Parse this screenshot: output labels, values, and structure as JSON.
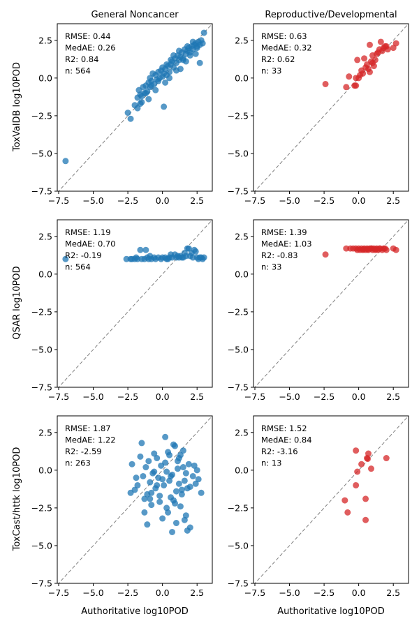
{
  "figure": {
    "shared_xlabel": "Authoritative log10POD",
    "column_titles": [
      "General Noncancer",
      "Reproductive/Developmental"
    ],
    "row_ylabels": [
      "ToxValDB log10POD",
      "QSAR log10POD",
      "ToxCast/httk log10POD"
    ],
    "colors": {
      "general": "#1f77b4",
      "repro": "#d62728",
      "identity_line": "#808080"
    }
  },
  "chart_data": [
    {
      "type": "scatter",
      "panel": "toxvaldb-general",
      "title": "General Noncancer",
      "xlabel": "",
      "ylabel": "ToxValDB log10POD",
      "xlim": [
        -7.6,
        3.6
      ],
      "ylim": [
        -7.5,
        3.6
      ],
      "xticks": [
        -7.5,
        -5.0,
        -2.5,
        0.0,
        2.5
      ],
      "yticks": [
        -7.5,
        -5.0,
        -2.5,
        0.0,
        2.5
      ],
      "stats": {
        "rmse": "RMSE: 0.44",
        "medae": "MedAE: 0.26",
        "r2": "R2: 0.84",
        "n": "n: 564"
      },
      "color": "#1f77b4",
      "x": [
        -7.0,
        -2.5,
        -2.3,
        -2.0,
        -1.8,
        -1.7,
        -1.6,
        -1.5,
        -1.4,
        -1.3,
        -1.2,
        -1.1,
        -1.0,
        -0.9,
        -0.8,
        -0.7,
        -0.6,
        -0.5,
        -0.4,
        -0.3,
        -0.2,
        -0.1,
        0.0,
        0.1,
        0.2,
        0.3,
        0.4,
        0.5,
        0.6,
        0.7,
        0.8,
        0.9,
        1.0,
        1.1,
        1.2,
        1.3,
        1.4,
        1.5,
        1.6,
        1.7,
        1.8,
        1.9,
        2.0,
        2.1,
        2.2,
        2.3,
        2.4,
        2.5,
        2.6,
        2.7,
        2.8,
        2.9,
        3.0,
        0.1,
        -0.5,
        -1.0,
        -1.8,
        -1.6,
        0.5,
        1.0,
        1.5,
        2.0,
        2.5,
        -0.3,
        0.3,
        0.8,
        1.3,
        1.8,
        -1.2,
        -0.8,
        0.0,
        0.6,
        1.2,
        2.2,
        2.7,
        -1.5,
        -0.9,
        0.2,
        1.7,
        2.4
      ],
      "y": [
        -5.5,
        -2.3,
        -2.7,
        -1.8,
        -1.3,
        -0.8,
        -1.1,
        -1.6,
        -0.6,
        -1.0,
        -0.5,
        -0.9,
        -0.3,
        -0.6,
        -0.2,
        0.3,
        -0.4,
        0.2,
        -0.1,
        0.4,
        0.0,
        0.5,
        0.1,
        0.3,
        0.6,
        0.2,
        0.8,
        0.4,
        0.9,
        1.1,
        0.7,
        1.3,
        1.0,
        1.5,
        1.2,
        1.4,
        1.7,
        1.3,
        1.9,
        1.6,
        1.8,
        2.0,
        1.7,
        2.1,
        1.9,
        2.2,
        2.3,
        2.1,
        2.4,
        2.2,
        2.5,
        2.3,
        3.0,
        -1.9,
        -0.8,
        -1.4,
        -2.0,
        -1.7,
        0.0,
        0.5,
        1.2,
        1.5,
        2.0,
        -0.2,
        0.9,
        1.5,
        0.6,
        2.1,
        -1.0,
        -0.5,
        0.7,
        1.2,
        1.8,
        2.4,
        1.0,
        -1.2,
        0.0,
        -0.3,
        1.1,
        1.6
      ]
    },
    {
      "type": "scatter",
      "panel": "toxvaldb-repro",
      "title": "Reproductive/Developmental",
      "xlabel": "",
      "ylabel": "",
      "xlim": [
        -7.6,
        3.6
      ],
      "ylim": [
        -7.5,
        3.6
      ],
      "xticks": [
        -7.5,
        -5.0,
        -2.5,
        0.0,
        2.5
      ],
      "yticks": [
        -7.5,
        -5.0,
        -2.5,
        0.0,
        2.5
      ],
      "stats": {
        "rmse": "RMSE: 0.63",
        "medae": "MedAE: 0.32",
        "r2": "R2: 0.62",
        "n": "n: 33"
      },
      "color": "#d62728",
      "x": [
        -2.4,
        -0.9,
        -0.7,
        -0.3,
        -0.2,
        -0.1,
        0.0,
        0.1,
        0.2,
        0.3,
        0.4,
        0.5,
        0.6,
        0.7,
        0.8,
        0.9,
        1.0,
        1.1,
        1.2,
        1.3,
        1.4,
        1.5,
        1.6,
        1.7,
        1.8,
        1.9,
        2.0,
        2.1,
        2.5,
        2.7,
        -0.2,
        0.8,
        1.0
      ],
      "y": [
        -0.4,
        -0.6,
        0.1,
        -0.5,
        -0.5,
        1.2,
        0.0,
        0.2,
        0.5,
        0.3,
        1.3,
        0.7,
        0.9,
        0.6,
        2.2,
        1.1,
        1.5,
        0.8,
        1.2,
        1.6,
        1.7,
        1.9,
        2.4,
        1.8,
        2.0,
        2.1,
        2.1,
        1.9,
        2.0,
        2.3,
        0.0,
        0.4,
        1.0
      ]
    },
    {
      "type": "scatter",
      "panel": "qsar-general",
      "title": "",
      "xlabel": "",
      "ylabel": "QSAR log10POD",
      "xlim": [
        -7.6,
        3.6
      ],
      "ylim": [
        -7.5,
        3.6
      ],
      "xticks": [
        -7.5,
        -5.0,
        -2.5,
        0.0,
        2.5
      ],
      "yticks": [
        -7.5,
        -5.0,
        -2.5,
        0.0,
        2.5
      ],
      "stats": {
        "rmse": "RMSE: 1.19",
        "medae": "MedAE: 0.70",
        "r2": "R2: -0.19",
        "n": "n: 564"
      },
      "color": "#1f77b4",
      "x": [
        -7.0,
        -2.6,
        -2.3,
        -2.0,
        -1.8,
        -1.5,
        -1.3,
        -1.0,
        -0.8,
        -0.5,
        -0.3,
        0.0,
        0.2,
        0.5,
        0.7,
        1.0,
        1.2,
        1.5,
        1.7,
        2.0,
        2.2,
        2.5,
        2.7,
        3.0,
        -1.6,
        -1.2,
        1.8,
        2.3,
        -1.9,
        -0.9,
        0.3,
        0.9,
        1.4,
        2.1,
        2.6,
        -2.2,
        -1.1,
        -0.1,
        0.6,
        1.1,
        1.6,
        2.4,
        2.9,
        -0.6,
        0.4,
        1.3,
        1.9,
        2.8
      ],
      "y": [
        1.0,
        1.0,
        1.0,
        1.0,
        1.0,
        1.0,
        1.0,
        1.0,
        1.0,
        1.0,
        1.1,
        1.1,
        1.1,
        1.1,
        1.1,
        1.1,
        1.1,
        1.1,
        1.2,
        1.2,
        1.1,
        1.1,
        1.1,
        1.1,
        1.6,
        1.6,
        1.7,
        1.6,
        1.1,
        1.2,
        1.0,
        1.3,
        1.1,
        1.4,
        1.0,
        1.0,
        1.1,
        1.0,
        1.3,
        1.2,
        1.4,
        1.5,
        1.0,
        1.1,
        1.0,
        1.2,
        1.7,
        1.1
      ]
    },
    {
      "type": "scatter",
      "panel": "qsar-repro",
      "title": "",
      "xlabel": "",
      "ylabel": "",
      "xlim": [
        -7.6,
        3.6
      ],
      "ylim": [
        -7.5,
        3.6
      ],
      "xticks": [
        -7.5,
        -5.0,
        -2.5,
        0.0,
        2.5
      ],
      "yticks": [
        -7.5,
        -5.0,
        -2.5,
        0.0,
        2.5
      ],
      "stats": {
        "rmse": "RMSE: 1.39",
        "medae": "MedAE: 1.03",
        "r2": "R2: -0.83",
        "n": "n: 33"
      },
      "color": "#d62728",
      "x": [
        -2.4,
        -0.9,
        -0.6,
        -0.2,
        -0.1,
        0.0,
        0.1,
        0.2,
        0.3,
        0.4,
        0.5,
        0.6,
        0.7,
        0.8,
        0.9,
        1.0,
        1.1,
        1.2,
        1.3,
        1.4,
        1.5,
        1.7,
        1.8,
        1.9,
        2.0,
        2.5,
        2.7,
        0.35,
        0.65,
        0.95,
        1.25,
        1.55,
        -0.4
      ],
      "y": [
        1.3,
        1.7,
        1.7,
        1.7,
        1.6,
        1.7,
        1.6,
        1.7,
        1.6,
        1.7,
        1.6,
        1.7,
        1.6,
        1.7,
        1.7,
        1.6,
        1.7,
        1.6,
        1.7,
        1.6,
        1.7,
        1.6,
        1.7,
        1.7,
        1.6,
        1.7,
        1.6,
        1.65,
        1.65,
        1.7,
        1.65,
        1.7,
        1.7
      ]
    },
    {
      "type": "scatter",
      "panel": "toxcast-general",
      "title": "",
      "xlabel": "Authoritative log10POD",
      "ylabel": "ToxCast/httk log10POD",
      "xlim": [
        -7.6,
        3.6
      ],
      "ylim": [
        -7.5,
        3.6
      ],
      "xticks": [
        -7.5,
        -5.0,
        -2.5,
        0.0,
        2.5
      ],
      "yticks": [
        -7.5,
        -5.0,
        -2.5,
        0.0,
        2.5
      ],
      "stats": {
        "rmse": "RMSE: 1.87",
        "medae": "MedAE: 1.22",
        "r2": "R2: -2.59",
        "n": "n: 263"
      },
      "color": "#1f77b4",
      "x": [
        -2.3,
        -2.2,
        -2.0,
        -1.8,
        -1.6,
        -1.5,
        -1.4,
        -1.3,
        -1.2,
        -1.1,
        -1.0,
        -0.9,
        -0.8,
        -0.7,
        -0.6,
        -0.5,
        -0.4,
        -0.3,
        -0.2,
        -0.1,
        0.0,
        0.1,
        0.2,
        0.3,
        0.4,
        0.5,
        0.6,
        0.7,
        0.8,
        0.9,
        1.0,
        1.1,
        1.2,
        1.3,
        1.4,
        1.5,
        1.6,
        1.7,
        1.8,
        1.9,
        2.0,
        2.2,
        2.4,
        2.6,
        2.8,
        -1.1,
        -0.4,
        0.4,
        0.7,
        1.0,
        1.3,
        1.6,
        1.8,
        -0.8,
        0.2,
        0.9,
        1.5,
        -1.9,
        -0.6,
        0.5,
        1.1,
        1.7,
        2.3,
        -1.3,
        -0.2,
        0.6,
        1.2,
        2.0,
        2.5,
        0.0,
        0.8,
        -0.9,
        1.4,
        0.3
      ],
      "y": [
        -1.5,
        0.4,
        -1.3,
        -1.0,
        0.9,
        1.8,
        -0.4,
        -1.9,
        0.2,
        -1.6,
        0.6,
        -0.8,
        -1.5,
        -0.2,
        1.1,
        -1.2,
        0.8,
        -0.5,
        -2.1,
        0.3,
        -3.2,
        -1.0,
        0.5,
        -2.5,
        1.2,
        -0.7,
        -1.8,
        -0.3,
        1.7,
        -2.2,
        -1.4,
        0.1,
        -0.9,
        1.0,
        -1.6,
        0.2,
        -0.7,
        -3.0,
        -1.2,
        0.4,
        -3.8,
        -0.4,
        -0.9,
        -0.6,
        -1.5,
        -3.6,
        -1.0,
        -2.8,
        -4.1,
        -3.5,
        -2.4,
        -3.3,
        -4.0,
        -2.3,
        2.2,
        1.6,
        1.3,
        -0.5,
        -0.1,
        1.0,
        0.6,
        -0.2,
        0.3,
        -2.8,
        -1.7,
        -0.4,
        0.8,
        -1.1,
        0.0,
        -0.6,
        -2.0,
        -1.9,
        -1.3,
        -0.1
      ]
    },
    {
      "type": "scatter",
      "panel": "toxcast-repro",
      "title": "",
      "xlabel": "Authoritative log10POD",
      "ylabel": "",
      "xlim": [
        -7.6,
        3.6
      ],
      "ylim": [
        -7.5,
        3.6
      ],
      "xticks": [
        -7.5,
        -5.0,
        -2.5,
        0.0,
        2.5
      ],
      "yticks": [
        -7.5,
        -5.0,
        -2.5,
        0.0,
        2.5
      ],
      "stats": {
        "rmse": "RMSE: 1.52",
        "medae": "MedAE: 0.84",
        "r2": "R2: -3.16",
        "n": "n: 13"
      },
      "color": "#d62728",
      "x": [
        -1.0,
        -0.8,
        -0.2,
        -0.2,
        -0.1,
        0.2,
        0.5,
        0.6,
        0.7,
        0.9,
        2.0,
        0.5,
        0.65
      ],
      "y": [
        -2.0,
        -2.8,
        -1.0,
        1.3,
        -0.1,
        0.4,
        -3.3,
        0.8,
        1.1,
        0.1,
        0.8,
        -1.9,
        0.75
      ]
    }
  ]
}
